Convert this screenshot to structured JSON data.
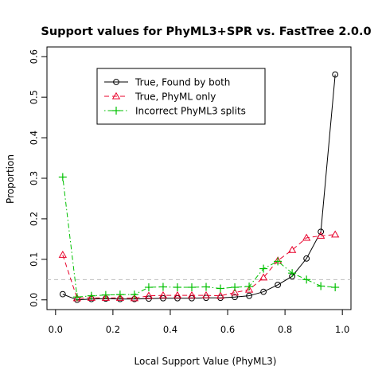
{
  "chart_data": {
    "type": "line",
    "title": "Support values for PhyML3+SPR vs. FastTree 2.0.0",
    "xlabel": "Local Support Value (PhyML3)",
    "ylabel": "Proportion",
    "xlim": [
      -0.03,
      1.03
    ],
    "ylim": [
      -0.024,
      0.624
    ],
    "x_ticks": [
      0.0,
      0.2,
      0.4,
      0.6,
      0.8,
      1.0
    ],
    "x_tick_labels": [
      "0.0",
      "0.2",
      "0.4",
      "0.6",
      "0.8",
      "1.0"
    ],
    "y_ticks": [
      0.0,
      0.1,
      0.2,
      0.3,
      0.4,
      0.5,
      0.6
    ],
    "y_tick_labels": [
      "0.0",
      "0.1",
      "0.2",
      "0.3",
      "0.4",
      "0.5",
      "0.6"
    ],
    "grid": false,
    "legend_position": "top-left",
    "reference_line": {
      "y": 0.05,
      "color": "#bdbdbd",
      "style": "dashed"
    },
    "x": [
      0.025,
      0.075,
      0.125,
      0.175,
      0.225,
      0.275,
      0.325,
      0.375,
      0.425,
      0.475,
      0.525,
      0.575,
      0.625,
      0.675,
      0.725,
      0.775,
      0.825,
      0.875,
      0.925,
      0.975
    ],
    "series": [
      {
        "name": "True, Found by both",
        "color": "#000000",
        "line": "solid",
        "marker": "circle",
        "values": [
          0.014,
          0.0,
          0.002,
          0.003,
          0.002,
          0.002,
          0.003,
          0.004,
          0.004,
          0.004,
          0.005,
          0.005,
          0.007,
          0.01,
          0.02,
          0.037,
          0.058,
          0.102,
          0.168,
          0.556
        ]
      },
      {
        "name": "True, PhyML only",
        "color": "#e8002a",
        "line": "dashed",
        "marker": "triangle",
        "values": [
          0.111,
          0.004,
          0.005,
          0.005,
          0.005,
          0.004,
          0.01,
          0.011,
          0.011,
          0.011,
          0.011,
          0.01,
          0.018,
          0.025,
          0.055,
          0.097,
          0.123,
          0.153,
          0.158,
          0.161
        ]
      },
      {
        "name": "Incorrect PhyML3 splits",
        "color": "#00c000",
        "line": "dotdash",
        "marker": "plus",
        "values": [
          0.303,
          0.007,
          0.01,
          0.012,
          0.013,
          0.013,
          0.031,
          0.032,
          0.031,
          0.031,
          0.032,
          0.028,
          0.031,
          0.033,
          0.077,
          0.095,
          0.066,
          0.05,
          0.034,
          0.031
        ]
      }
    ]
  }
}
